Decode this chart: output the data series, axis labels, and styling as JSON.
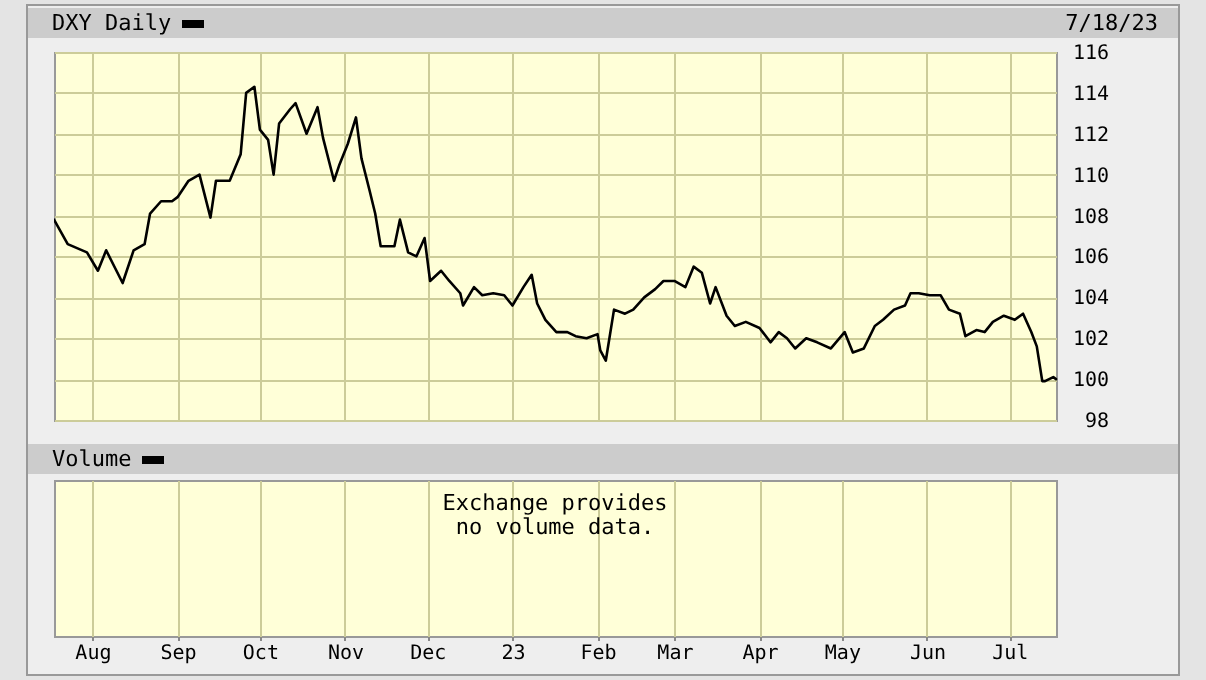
{
  "chart_data": [
    {
      "type": "line",
      "title": "DXY Daily",
      "annotations": [
        "7/18/23"
      ],
      "x": [
        "2022-07-18",
        "2022-07-23",
        "2022-07-30",
        "2022-08-03",
        "2022-08-06",
        "2022-08-12",
        "2022-08-16",
        "2022-08-20",
        "2022-08-22",
        "2022-08-26",
        "2022-08-30",
        "2022-09-01",
        "2022-09-05",
        "2022-09-09",
        "2022-09-13",
        "2022-09-15",
        "2022-09-20",
        "2022-09-24",
        "2022-09-26",
        "2022-09-29",
        "2022-10-01",
        "2022-10-04",
        "2022-10-06",
        "2022-10-08",
        "2022-10-12",
        "2022-10-14",
        "2022-10-18",
        "2022-10-22",
        "2022-10-24",
        "2022-10-28",
        "2022-10-30",
        "2022-11-02",
        "2022-11-05",
        "2022-11-07",
        "2022-11-10",
        "2022-11-12",
        "2022-11-14",
        "2022-11-16",
        "2022-11-19",
        "2022-11-21",
        "2022-11-24",
        "2022-11-27",
        "2022-11-30",
        "2022-12-02",
        "2022-12-06",
        "2022-12-09",
        "2022-12-13",
        "2022-12-14",
        "2022-12-18",
        "2022-12-21",
        "2022-12-25",
        "2022-12-29",
        "2023-01-01",
        "2023-01-05",
        "2023-01-08",
        "2023-01-10",
        "2023-01-13",
        "2023-01-17",
        "2023-01-21",
        "2023-01-24",
        "2023-01-28",
        "2023-02-01",
        "2023-02-02",
        "2023-02-04",
        "2023-02-07",
        "2023-02-11",
        "2023-02-14",
        "2023-02-18",
        "2023-02-22",
        "2023-02-25",
        "2023-03-01",
        "2023-03-05",
        "2023-03-08",
        "2023-03-11",
        "2023-03-14",
        "2023-03-16",
        "2023-03-20",
        "2023-03-23",
        "2023-03-27",
        "2023-04-01",
        "2023-04-05",
        "2023-04-08",
        "2023-04-11",
        "2023-04-14",
        "2023-04-18",
        "2023-04-22",
        "2023-04-27",
        "2023-05-02",
        "2023-05-05",
        "2023-05-09",
        "2023-05-13",
        "2023-05-16",
        "2023-05-20",
        "2023-05-24",
        "2023-05-26",
        "2023-05-29",
        "2023-06-02",
        "2023-06-06",
        "2023-06-09",
        "2023-06-13",
        "2023-06-15",
        "2023-06-19",
        "2023-06-22",
        "2023-06-25",
        "2023-06-29",
        "2023-07-03",
        "2023-07-06",
        "2023-07-09",
        "2023-07-11",
        "2023-07-13",
        "2023-07-14",
        "2023-07-17",
        "2023-07-18"
      ],
      "series": [
        {
          "color": "#000000",
          "values": [
            107.8,
            106.6,
            106.2,
            105.3,
            106.3,
            104.7,
            106.3,
            106.6,
            108.1,
            108.7,
            108.7,
            108.9,
            109.7,
            110.0,
            107.9,
            109.7,
            109.7,
            111.0,
            114.0,
            114.3,
            112.2,
            111.7,
            110.0,
            112.5,
            113.2,
            113.5,
            112.0,
            113.3,
            111.8,
            109.7,
            110.5,
            111.5,
            112.8,
            110.8,
            109.2,
            108.1,
            106.5,
            106.5,
            106.5,
            107.8,
            106.2,
            106.0,
            106.9,
            104.8,
            105.3,
            104.8,
            104.2,
            103.6,
            104.5,
            104.1,
            104.2,
            104.1,
            103.6,
            104.5,
            105.1,
            103.7,
            102.9,
            102.3,
            102.3,
            102.1,
            102.0,
            102.2,
            101.4,
            100.9,
            103.4,
            103.2,
            103.4,
            104.0,
            104.4,
            104.8,
            104.8,
            104.5,
            105.5,
            105.2,
            103.7,
            104.5,
            103.1,
            102.6,
            102.8,
            102.5,
            101.8,
            102.3,
            102.0,
            101.5,
            102.0,
            101.8,
            101.5,
            102.3,
            101.3,
            101.5,
            102.6,
            102.9,
            103.4,
            103.6,
            104.2,
            104.2,
            104.1,
            104.1,
            103.4,
            103.2,
            102.1,
            102.4,
            102.3,
            102.8,
            103.1,
            102.9,
            103.2,
            102.3,
            101.6,
            99.9,
            99.9,
            100.1,
            100.0
          ]
        }
      ],
      "xlim": [
        "2022-07-18",
        "2023-07-18"
      ],
      "xticks": [
        {
          "value": "2022-08-01",
          "label": "Aug"
        },
        {
          "value": "2022-09-01",
          "label": "Sep"
        },
        {
          "value": "2022-10-01",
          "label": "Oct"
        },
        {
          "value": "2022-11-01",
          "label": "Nov"
        },
        {
          "value": "2022-12-01",
          "label": "Dec"
        },
        {
          "value": "2023-01-01",
          "label": "23"
        },
        {
          "value": "2023-02-01",
          "label": "Feb"
        },
        {
          "value": "2023-03-01",
          "label": "Mar"
        },
        {
          "value": "2023-04-01",
          "label": "Apr"
        },
        {
          "value": "2023-05-01",
          "label": "May"
        },
        {
          "value": "2023-06-01",
          "label": "Jun"
        },
        {
          "value": "2023-07-01",
          "label": "Jul"
        }
      ],
      "ylim": [
        98,
        116
      ],
      "yticks": [
        98,
        100,
        102,
        104,
        106,
        108,
        110,
        112,
        114,
        116
      ],
      "grid": true,
      "tick_labels": "y"
    },
    {
      "type": "other",
      "title": "Volume",
      "annotations": [
        "Exchange provides\nno volume data."
      ]
    }
  ]
}
